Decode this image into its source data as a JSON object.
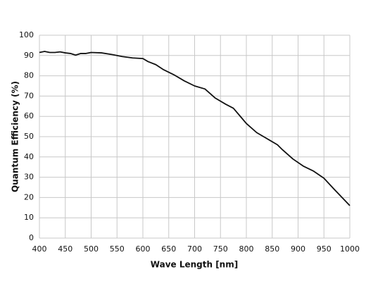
{
  "chart_data": {
    "type": "line",
    "x_label": "Wave Length [nm]",
    "y_label": "Quantum Efficiency (%)",
    "x": [
      400,
      410,
      420,
      430,
      440,
      450,
      460,
      470,
      480,
      490,
      500,
      520,
      540,
      560,
      580,
      600,
      610,
      625,
      640,
      660,
      680,
      700,
      720,
      740,
      760,
      775,
      790,
      800,
      820,
      840,
      860,
      870,
      890,
      910,
      930,
      950,
      970,
      1000
    ],
    "series": [
      {
        "color": "#111111",
        "values": [
          91.5,
          92,
          91.5,
          91.5,
          91.8,
          91.3,
          91,
          90.2,
          91,
          91,
          91.5,
          91.3,
          90.5,
          89.5,
          88.8,
          88.5,
          87,
          85.5,
          83,
          80.5,
          77.5,
          75,
          73.5,
          69,
          66,
          64,
          59.5,
          56.5,
          52,
          49,
          46,
          43.5,
          39,
          35.5,
          33,
          29.5,
          24,
          16
        ]
      }
    ],
    "xlim": [
      400,
      1000
    ],
    "xticks": [
      400,
      450,
      500,
      550,
      600,
      650,
      700,
      750,
      800,
      850,
      900,
      950,
      1000
    ],
    "ylim": [
      0,
      100
    ],
    "yticks": [
      0,
      10,
      20,
      30,
      40,
      50,
      60,
      70,
      80,
      90,
      100
    ],
    "grid": true
  }
}
